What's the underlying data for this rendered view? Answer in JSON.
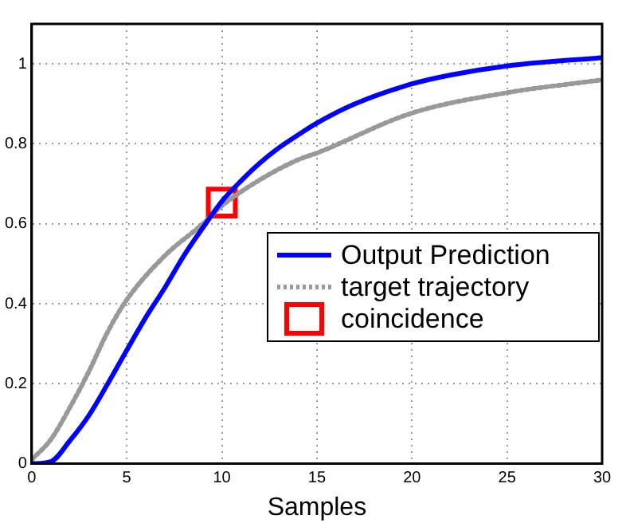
{
  "chart_data": {
    "type": "line",
    "xlabel": "Samples",
    "xlim": [
      0,
      30
    ],
    "xticks": [
      0,
      5,
      10,
      15,
      20,
      25,
      30
    ],
    "ylim": [
      0,
      1.1
    ],
    "yticks": [
      0,
      0.2,
      0.4,
      0.6,
      0.8,
      1
    ],
    "grid": true,
    "legend": "right",
    "series": [
      {
        "name": "Output Prediction",
        "color": "#0000ff",
        "line_style": "solid",
        "marker": "none",
        "x": [
          0,
          1,
          2,
          3,
          4,
          5,
          6,
          7,
          8,
          9,
          10,
          11,
          12,
          13,
          14,
          15,
          17,
          20,
          22,
          25,
          30
        ],
        "values": [
          0,
          0.005,
          0.057,
          0.12,
          0.2,
          0.284,
          0.366,
          0.44,
          0.52,
          0.59,
          0.656,
          0.707,
          0.752,
          0.79,
          0.822,
          0.852,
          0.9,
          0.95,
          0.972,
          0.995,
          1.016
        ]
      },
      {
        "name": "target trajectory",
        "color": "#999999",
        "line_style": "dotted",
        "marker": "none",
        "x": [
          0,
          1,
          2,
          3,
          4,
          5,
          7,
          9,
          10,
          12,
          14,
          15,
          20,
          25,
          30
        ],
        "values": [
          0.01,
          0.06,
          0.14,
          0.23,
          0.33,
          0.41,
          0.52,
          0.6,
          0.645,
          0.71,
          0.76,
          0.777,
          0.877,
          0.928,
          0.96
        ]
      },
      {
        "name": "coincidence",
        "type": "scatter",
        "color": "#ff0000",
        "marker": "square",
        "x": [
          10
        ],
        "values": [
          0.653
        ]
      }
    ]
  }
}
